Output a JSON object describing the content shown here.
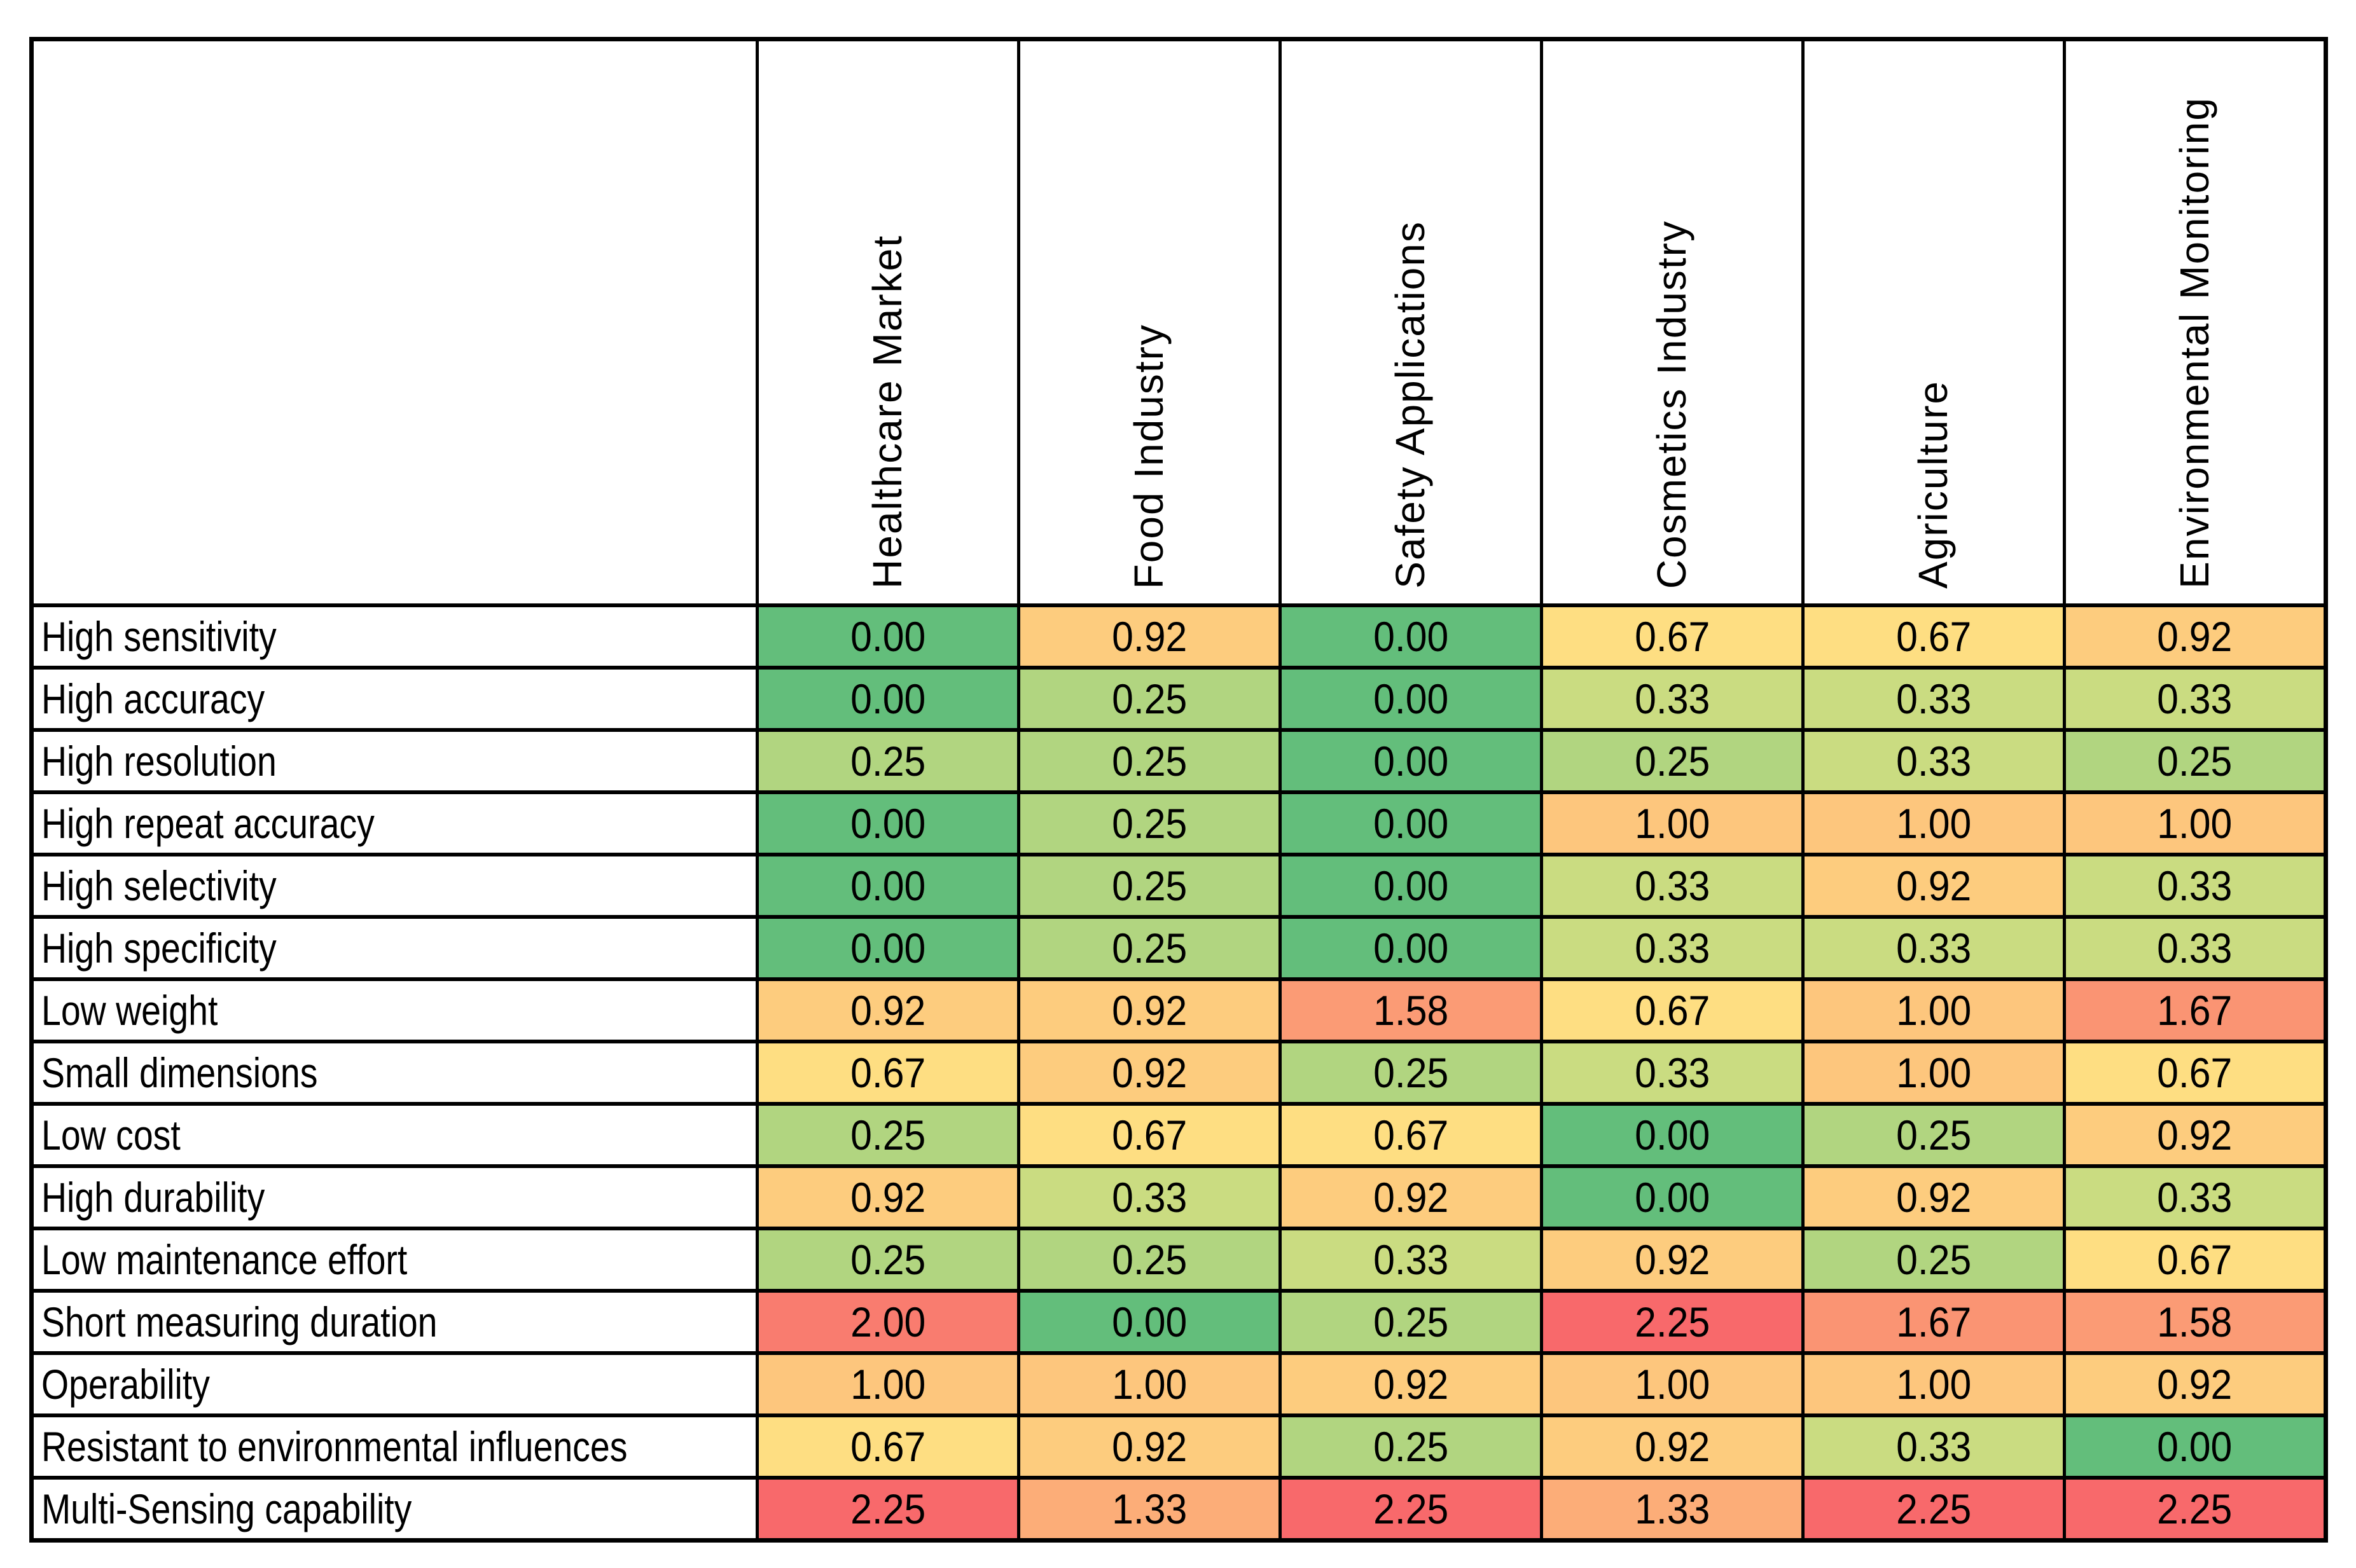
{
  "table": {
    "corner_label": ""
  },
  "chart_data": {
    "type": "heatmap",
    "title": "",
    "xlabel": "",
    "ylabel": "",
    "legend": "none",
    "grid": "solid black cell borders",
    "value_format": "2-decimals",
    "columns": [
      "Healthcare Market",
      "Food Industry",
      "Safety Applications",
      "Cosmetics Industry",
      "Agriculture",
      "Environmental Monitoring"
    ],
    "rows": [
      "High sensitivity",
      "High accuracy",
      "High resolution",
      "High repeat accuracy",
      "High selectivity",
      "High specificity",
      "Low weight",
      "Small dimensions",
      "Low cost",
      "High durability",
      "Low maintenance effort",
      "Short measuring duration",
      "Operability",
      "Resistant to environmental influences",
      "Multi-Sensing capability"
    ],
    "values": [
      [
        0.0,
        0.92,
        0.0,
        0.67,
        0.67,
        0.92
      ],
      [
        0.0,
        0.25,
        0.0,
        0.33,
        0.33,
        0.33
      ],
      [
        0.25,
        0.25,
        0.0,
        0.25,
        0.33,
        0.25
      ],
      [
        0.0,
        0.25,
        0.0,
        1.0,
        1.0,
        1.0
      ],
      [
        0.0,
        0.25,
        0.0,
        0.33,
        0.92,
        0.33
      ],
      [
        0.0,
        0.25,
        0.0,
        0.33,
        0.33,
        0.33
      ],
      [
        0.92,
        0.92,
        1.58,
        0.67,
        1.0,
        1.67
      ],
      [
        0.67,
        0.92,
        0.25,
        0.33,
        1.0,
        0.67
      ],
      [
        0.25,
        0.67,
        0.67,
        0.0,
        0.25,
        0.92
      ],
      [
        0.92,
        0.33,
        0.92,
        0.0,
        0.92,
        0.33
      ],
      [
        0.25,
        0.25,
        0.33,
        0.92,
        0.25,
        0.67
      ],
      [
        2.0,
        0.0,
        0.25,
        2.25,
        1.67,
        1.58
      ],
      [
        1.0,
        1.0,
        0.92,
        1.0,
        1.0,
        0.92
      ],
      [
        0.67,
        0.92,
        0.25,
        0.92,
        0.33,
        0.0
      ],
      [
        2.25,
        1.33,
        2.25,
        1.33,
        2.25,
        2.25
      ]
    ],
    "color_scale": {
      "min_value": 0.0,
      "min_color": "#63BE7B",
      "mid_value": 0.5,
      "mid_color": "#FFEB84",
      "max_value": 2.25,
      "max_color": "#F8696B"
    },
    "text_color": "#000000",
    "border_color": "#000000",
    "background_color": "#FFFFFF"
  }
}
